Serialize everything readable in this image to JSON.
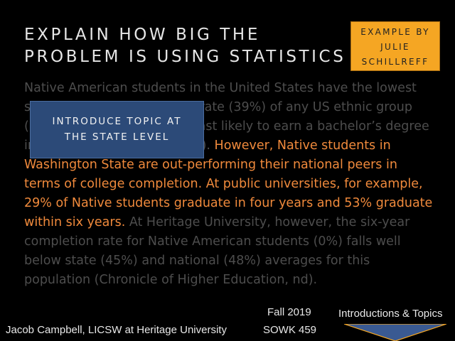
{
  "slide": {
    "title_lines": [
      "EXPLAIN HOW BIG THE",
      "PROBLEM IS USING STATISTICS"
    ],
    "badge_lines": [
      "EXAMPLE BY",
      "JULIE",
      "SCHILLREFF"
    ],
    "callout_lines": [
      "INTRODUCE TOPIC AT",
      "THE STATE LEVEL"
    ],
    "body_dim_1": "Native American students in the United States have the lowest six-year college completion rate (39%) of any US ethnic group (NCES, 2016) and are the least likely to earn a bachelor’s degree in their lifetime (NCES, 2013).",
    "body_highlight": "However, Native students in Washington State are out-performing their national peers in terms of college completion. At public universities, for example, 29% of Native students graduate in four years and 53% graduate within six years.",
    "body_dim_2": "At Heritage University, however, the six-year completion rate for Native American students (0%) falls well below state (45%) and national (48%) averages for this population (Chronicle of Higher Education, nd)."
  },
  "footer": {
    "author": "Jacob Campbell, LICSW at Heritage University",
    "term": "Fall 2019",
    "course": "SOWK 459",
    "nav_label": "Introductions & Topics",
    "nav_icon": "triangle-down-icon"
  },
  "colors": {
    "background": "#000000",
    "title": "#e6e6e6",
    "badge_bg": "#f5a623",
    "callout_bg": "#2c4a78",
    "highlight_text": "#f08a3c",
    "dim_text": "#4d4d4d",
    "nav_arrow": "#3a5a92"
  }
}
